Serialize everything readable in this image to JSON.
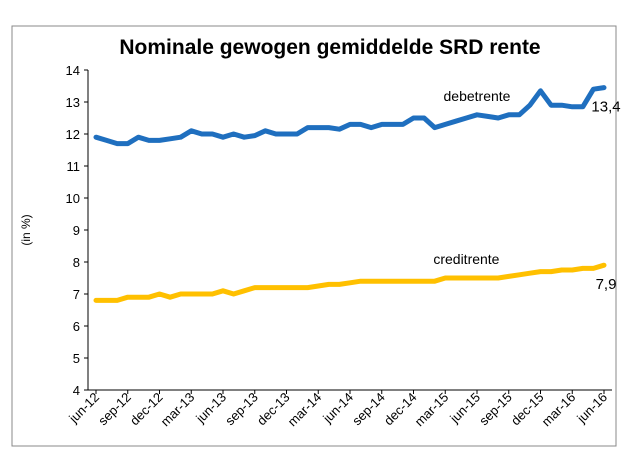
{
  "chart_data": {
    "type": "line",
    "title": "Nominale gewogen gemiddelde SRD rente",
    "y_label": "(in %)",
    "categories": [
      "jun-12",
      null,
      null,
      "sep-12",
      null,
      null,
      "dec-12",
      null,
      null,
      "mar-13",
      null,
      null,
      "jun-13",
      null,
      null,
      "sep-13",
      null,
      null,
      "dec-13",
      null,
      null,
      "mar-14",
      null,
      null,
      "jun-14",
      null,
      null,
      "sep-14",
      null,
      null,
      "dec-14",
      null,
      null,
      "mar-15",
      null,
      null,
      "jun-15",
      null,
      null,
      "sep-15",
      null,
      null,
      "dec-15",
      null,
      null,
      "mar-16",
      null,
      null,
      "jun-16"
    ],
    "series": [
      {
        "name": "debetrente",
        "color": "#1f6fbf",
        "values": [
          11.9,
          11.8,
          11.7,
          11.7,
          11.9,
          11.8,
          11.8,
          11.85,
          11.9,
          12.1,
          12.0,
          12.0,
          11.9,
          12.0,
          11.9,
          11.95,
          12.1,
          12.0,
          12.0,
          12.0,
          12.2,
          12.2,
          12.2,
          12.15,
          12.3,
          12.3,
          12.2,
          12.3,
          12.3,
          12.3,
          12.5,
          12.5,
          12.2,
          12.3,
          12.4,
          12.5,
          12.6,
          12.55,
          12.5,
          12.6,
          12.6,
          12.9,
          13.35,
          12.9,
          12.9,
          12.85,
          12.85,
          13.4,
          13.45
        ],
        "value_labels": [
          null,
          null,
          null,
          null,
          null,
          null,
          null,
          null,
          null,
          null,
          null,
          null,
          null,
          null,
          null,
          null,
          null,
          null,
          null,
          null,
          null,
          null,
          null,
          null,
          null,
          null,
          null,
          null,
          null,
          null,
          null,
          null,
          null,
          null,
          null,
          null,
          null,
          null,
          null,
          null,
          null,
          null,
          null,
          null,
          null,
          null,
          null,
          null,
          "13,4"
        ]
      },
      {
        "name": "creditrente",
        "color": "#ffc000",
        "values": [
          6.8,
          6.8,
          6.8,
          6.9,
          6.9,
          6.9,
          7.0,
          6.9,
          7.0,
          7.0,
          7.0,
          7.0,
          7.1,
          7.0,
          7.1,
          7.2,
          7.2,
          7.2,
          7.2,
          7.2,
          7.2,
          7.25,
          7.3,
          7.3,
          7.35,
          7.4,
          7.4,
          7.4,
          7.4,
          7.4,
          7.4,
          7.4,
          7.4,
          7.5,
          7.5,
          7.5,
          7.5,
          7.5,
          7.5,
          7.55,
          7.6,
          7.65,
          7.7,
          7.7,
          7.75,
          7.75,
          7.8,
          7.8,
          7.9
        ],
        "value_labels": [
          null,
          null,
          null,
          null,
          null,
          null,
          null,
          null,
          null,
          null,
          null,
          null,
          null,
          null,
          null,
          null,
          null,
          null,
          null,
          null,
          null,
          null,
          null,
          null,
          null,
          null,
          null,
          null,
          null,
          null,
          null,
          null,
          null,
          null,
          null,
          null,
          null,
          null,
          null,
          null,
          null,
          null,
          null,
          null,
          null,
          null,
          null,
          null,
          "7,9"
        ]
      }
    ],
    "ylim": [
      4,
      14
    ],
    "yticks": [
      4,
      5,
      6,
      7,
      8,
      9,
      10,
      11,
      12,
      13,
      14
    ]
  }
}
